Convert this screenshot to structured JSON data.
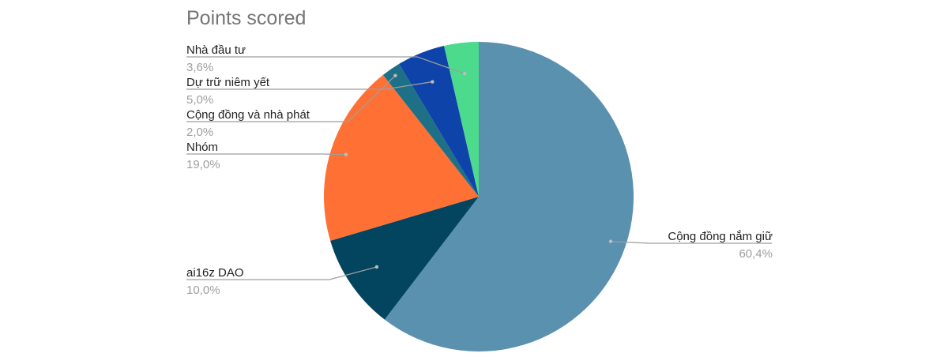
{
  "chart_data": {
    "type": "pie",
    "title": "Points scored",
    "start_angle_deg": 0,
    "direction": "clockwise",
    "slices": [
      {
        "label": "Cộng đồng nắm giữ",
        "value": 60.4,
        "value_label": "60,4%",
        "color": "#5A91AE"
      },
      {
        "label": "ai16z DAO",
        "value": 10.0,
        "value_label": "10,0%",
        "color": "#03445E"
      },
      {
        "label": "Nhóm",
        "value": 19.0,
        "value_label": "19,0%",
        "color": "#FF7035"
      },
      {
        "label": "Cộng đồng và nhà phát",
        "value": 2.0,
        "value_label": "2,0%",
        "color": "#1E7086"
      },
      {
        "label": "Dự trữ niêm yết",
        "value": 5.0,
        "value_label": "5,0%",
        "color": "#0E43A9"
      },
      {
        "label": "Nhà đầu tư",
        "value": 3.6,
        "value_label": "3,6%",
        "color": "#4CDA8D"
      }
    ],
    "legend": "none",
    "label_position": "outside-with-leader-lines"
  }
}
